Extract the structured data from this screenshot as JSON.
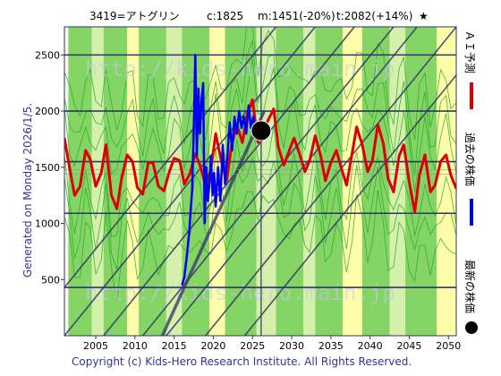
{
  "header": {
    "stock": "3419=アトグリン",
    "current": "c:1825",
    "min": "m:1451(-20%)",
    "target": "t:2082(+14%)",
    "star": "★"
  },
  "side_label": "Generated on Monday 2026/1/5.",
  "copyright": "Copyright (c) Kids-Hero Research Institute. All Rights Reserved.",
  "watermark": "http://kids-hero.main.jp",
  "legend": [
    {
      "label": "ＡＩ予測",
      "color": "#dd0000"
    },
    {
      "label": "過去の株価",
      "color": "#0000ee"
    },
    {
      "label": "最新の株価",
      "color": "#000000"
    }
  ],
  "colors": {
    "band_green": "#66cc44",
    "band_light": "#ccee99",
    "band_yellow": "#ffff99",
    "grid": "#333366",
    "green_line": "#22aa22"
  },
  "chart_data": {
    "type": "line",
    "title": "3419=アトグリン c:1825 m:1451(-20%) t:2082(+14%) ★",
    "xlim": [
      2001,
      2051
    ],
    "ylim": [
      0,
      2750
    ],
    "x_ticks": [
      2005,
      2010,
      2015,
      2020,
      2025,
      2030,
      2035,
      2040,
      2045,
      2050
    ],
    "y_ticks": [
      500,
      1000,
      1500,
      2000,
      2500
    ],
    "grid": true,
    "latest": {
      "x": 2026.1,
      "y": 1825
    },
    "series": [
      {
        "name": "ＡＩ予測",
        "color": "#dd0000",
        "x": [
          2001.0,
          2001.7,
          2002.3,
          2003.0,
          2003.7,
          2004.3,
          2005.0,
          2005.7,
          2006.3,
          2007.0,
          2007.7,
          2008.3,
          2009.0,
          2009.7,
          2010.3,
          2011.0,
          2011.7,
          2012.3,
          2013.0,
          2013.7,
          2014.3,
          2015.0,
          2015.7,
          2016.3,
          2017.0,
          2017.7,
          2018.3,
          2019.0,
          2019.7,
          2020.3,
          2021.0,
          2021.7,
          2022.3,
          2023.0,
          2023.7,
          2024.3,
          2025.0,
          2025.7,
          2026.3,
          2027.0,
          2027.7,
          2028.3,
          2029.0,
          2029.7,
          2030.3,
          2031.0,
          2031.7,
          2032.3,
          2033.0,
          2033.7,
          2034.3,
          2035.0,
          2035.7,
          2036.3,
          2037.0,
          2037.7,
          2038.3,
          2039.0,
          2039.7,
          2040.3,
          2041.0,
          2041.7,
          2042.3,
          2043.0,
          2043.7,
          2044.3,
          2045.0,
          2045.7,
          2046.3,
          2047.0,
          2047.7,
          2048.3,
          2049.0,
          2049.7,
          2050.3,
          2051.0
        ],
        "y": [
          1760,
          1480,
          1250,
          1330,
          1650,
          1570,
          1330,
          1450,
          1700,
          1250,
          1130,
          1400,
          1610,
          1550,
          1320,
          1260,
          1540,
          1540,
          1330,
          1290,
          1440,
          1580,
          1560,
          1350,
          1440,
          1620,
          1520,
          1340,
          1480,
          1800,
          1560,
          1380,
          1680,
          1880,
          1720,
          1960,
          2100,
          1720,
          1830,
          1920,
          2020,
          1680,
          1520,
          1650,
          1760,
          1620,
          1460,
          1560,
          1780,
          1600,
          1380,
          1540,
          1650,
          1500,
          1340,
          1620,
          1860,
          1700,
          1460,
          1560,
          1880,
          1710,
          1400,
          1280,
          1600,
          1700,
          1370,
          1100,
          1430,
          1610,
          1280,
          1340,
          1550,
          1610,
          1430,
          1310
        ]
      },
      {
        "name": "過去の株価",
        "color": "#0000ee",
        "x": [
          2016.0,
          2016.3,
          2016.6,
          2016.9,
          2017.1,
          2017.3,
          2017.5,
          2017.7,
          2017.9,
          2018.1,
          2018.3,
          2018.5,
          2018.7,
          2018.9,
          2019.1,
          2019.3,
          2019.5,
          2019.7,
          2019.9,
          2020.1,
          2020.3,
          2020.6,
          2020.9,
          2021.2,
          2021.5,
          2021.8,
          2022.1,
          2022.4,
          2022.7,
          2023.0,
          2023.3,
          2023.6,
          2023.9,
          2024.2,
          2024.5,
          2024.8,
          2025.1,
          2025.4,
          2025.7,
          2026.0
        ],
        "y": [
          450,
          520,
          700,
          900,
          1100,
          1300,
          1800,
          2500,
          1600,
          2200,
          1800,
          2100,
          2250,
          1000,
          1500,
          1200,
          1350,
          1600,
          1250,
          1450,
          1150,
          1500,
          1200,
          1700,
          1350,
          1600,
          1900,
          1650,
          1950,
          1800,
          2000,
          1850,
          1950,
          1800,
          2050,
          1850,
          1950,
          1820,
          1880,
          1825
        ]
      }
    ]
  }
}
